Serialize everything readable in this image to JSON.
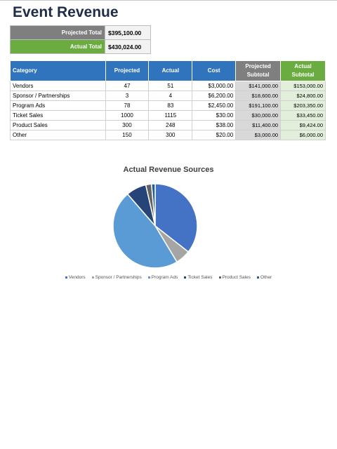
{
  "title": "Event Revenue",
  "summary": {
    "projected_label": "Projected Total",
    "projected_value": "$395,100.00",
    "actual_label": "Actual Total",
    "actual_value": "$430,024.00"
  },
  "table": {
    "headers": {
      "category": "Category",
      "projected": "Projected",
      "actual": "Actual",
      "cost": "Cost",
      "projected_subtotal": "Projected Subtotal",
      "actual_subtotal": "Actual Subtotal"
    },
    "rows": [
      {
        "category": "Vendors",
        "projected": "47",
        "actual": "51",
        "cost": "$3,000.00",
        "projected_subtotal": "$141,000.00",
        "actual_subtotal": "$153,000.00"
      },
      {
        "category": "Sponsor / Partnerships",
        "projected": "3",
        "actual": "4",
        "cost": "$6,200.00",
        "projected_subtotal": "$18,600.00",
        "actual_subtotal": "$24,800.00"
      },
      {
        "category": "Program Ads",
        "projected": "78",
        "actual": "83",
        "cost": "$2,450.00",
        "projected_subtotal": "$191,100.00",
        "actual_subtotal": "$203,350.00"
      },
      {
        "category": "Ticket Sales",
        "projected": "1000",
        "actual": "1115",
        "cost": "$30.00",
        "projected_subtotal": "$30,000.00",
        "actual_subtotal": "$33,450.00"
      },
      {
        "category": "Product Sales",
        "projected": "300",
        "actual": "248",
        "cost": "$38.00",
        "projected_subtotal": "$11,400.00",
        "actual_subtotal": "$9,424.00"
      },
      {
        "category": "Other",
        "projected": "150",
        "actual": "300",
        "cost": "$20.00",
        "projected_subtotal": "$3,000.00",
        "actual_subtotal": "$6,000.00"
      }
    ]
  },
  "chart_data": {
    "type": "pie",
    "title": "Actual Revenue Sources",
    "categories": [
      "Vendors",
      "Sponsor / Partnerships",
      "Program Ads",
      "Ticket Sales",
      "Product Sales",
      "Other"
    ],
    "values": [
      153000,
      24800,
      203350,
      33450,
      9424,
      6000
    ],
    "colors": [
      "#4472c4",
      "#a5a5a5",
      "#5b9bd5",
      "#264478",
      "#636363",
      "#255e91"
    ],
    "legend_position": "bottom"
  }
}
